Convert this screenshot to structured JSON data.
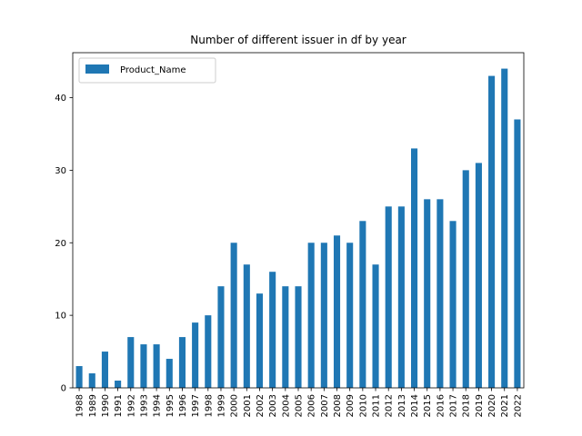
{
  "chart_data": {
    "type": "bar",
    "title": "Number of different issuer in df by year",
    "xlabel": "",
    "ylabel": "",
    "series": [
      {
        "name": "Product_Name",
        "color": "#1f77b4",
        "values": [
          3,
          2,
          5,
          1,
          7,
          6,
          6,
          4,
          7,
          9,
          10,
          14,
          20,
          17,
          13,
          16,
          14,
          14,
          20,
          20,
          21,
          20,
          23,
          17,
          25,
          25,
          33,
          26,
          26,
          23,
          30,
          31,
          43,
          44,
          37
        ]
      }
    ],
    "categories": [
      "1988",
      "1989",
      "1990",
      "1991",
      "1992",
      "1993",
      "1994",
      "1995",
      "1996",
      "1997",
      "1998",
      "1999",
      "2000",
      "2001",
      "2002",
      "2003",
      "2004",
      "2005",
      "2006",
      "2007",
      "2008",
      "2009",
      "2010",
      "2011",
      "2012",
      "2013",
      "2014",
      "2015",
      "2016",
      "2017",
      "2018",
      "2019",
      "2020",
      "2021",
      "2022"
    ],
    "ylim": [
      0,
      46.2
    ],
    "yticks": [
      0,
      10,
      20,
      30,
      40
    ],
    "grid": false,
    "legend_position": "top-left"
  }
}
